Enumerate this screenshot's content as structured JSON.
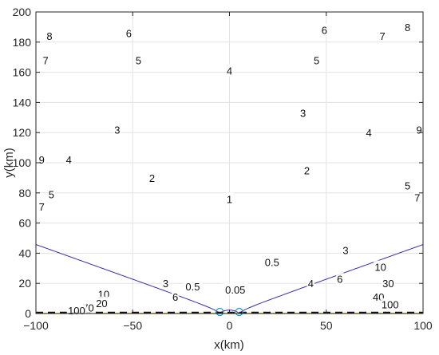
{
  "chart_data": {
    "type": "contour",
    "xlabel": "x(km)",
    "ylabel": "y(km)",
    "xlim": [
      -100,
      100
    ],
    "ylim": [
      0,
      200
    ],
    "xticks": [
      -100,
      -50,
      0,
      50,
      100
    ],
    "yticks": [
      0,
      20,
      40,
      60,
      80,
      100,
      120,
      140,
      160,
      180,
      200
    ],
    "grid": true,
    "sources": [
      [
        -5,
        0
      ],
      [
        5,
        0
      ]
    ],
    "baseline_y": 0,
    "contour_levels": [
      0.05,
      0.5,
      1,
      2,
      3,
      4,
      5,
      6,
      7,
      8,
      9,
      10,
      20,
      30,
      40,
      50,
      60,
      70,
      80,
      90,
      100
    ],
    "labeled_levels": [
      0.05,
      0.5,
      1,
      2,
      3,
      4,
      5,
      6,
      7,
      8,
      9,
      10,
      20,
      30,
      40,
      70,
      100
    ],
    "contour_labels": [
      {
        "text": "0.05",
        "x": 3,
        "y": 16
      },
      {
        "text": "0.5",
        "x": -19,
        "y": 18
      },
      {
        "text": "0.5",
        "x": 22,
        "y": 34
      },
      {
        "text": "1",
        "x": 0,
        "y": 76
      },
      {
        "text": "2",
        "x": -40,
        "y": 90
      },
      {
        "text": "2",
        "x": 40,
        "y": 95
      },
      {
        "text": "3",
        "x": -58,
        "y": 122
      },
      {
        "text": "3",
        "x": 38,
        "y": 133
      },
      {
        "text": "3",
        "x": -33,
        "y": 20
      },
      {
        "text": "3",
        "x": 60,
        "y": 42
      },
      {
        "text": "4",
        "x": 0,
        "y": 161
      },
      {
        "text": "4",
        "x": -83,
        "y": 102
      },
      {
        "text": "4",
        "x": 72,
        "y": 120
      },
      {
        "text": "4",
        "x": 42,
        "y": 20
      },
      {
        "text": "5",
        "x": -47,
        "y": 168
      },
      {
        "text": "5",
        "x": 45,
        "y": 168
      },
      {
        "text": "5",
        "x": -92,
        "y": 79
      },
      {
        "text": "5",
        "x": 92,
        "y": 85
      },
      {
        "text": "6",
        "x": -52,
        "y": 186
      },
      {
        "text": "6",
        "x": 49,
        "y": 188
      },
      {
        "text": "6",
        "x": -28,
        "y": 11
      },
      {
        "text": "6",
        "x": 57,
        "y": 23
      },
      {
        "text": "7",
        "x": -95,
        "y": 168
      },
      {
        "text": "7",
        "x": 79,
        "y": 184
      },
      {
        "text": "7",
        "x": -97,
        "y": 71
      },
      {
        "text": "7",
        "x": 97,
        "y": 77
      },
      {
        "text": "8",
        "x": -93,
        "y": 184
      },
      {
        "text": "8",
        "x": 92,
        "y": 190
      },
      {
        "text": "9",
        "x": -97,
        "y": 102
      },
      {
        "text": "9",
        "x": 98,
        "y": 122
      },
      {
        "text": "10",
        "x": -65,
        "y": 13
      },
      {
        "text": "10",
        "x": 78,
        "y": 31
      },
      {
        "text": "20",
        "x": -66,
        "y": 7
      },
      {
        "text": "30",
        "x": 82,
        "y": 20
      },
      {
        "text": "40",
        "x": 77,
        "y": 11
      },
      {
        "text": "70",
        "x": -73,
        "y": 4
      },
      {
        "text": "100",
        "x": -79,
        "y": 2
      },
      {
        "text": "100",
        "x": 83,
        "y": 6
      }
    ]
  }
}
